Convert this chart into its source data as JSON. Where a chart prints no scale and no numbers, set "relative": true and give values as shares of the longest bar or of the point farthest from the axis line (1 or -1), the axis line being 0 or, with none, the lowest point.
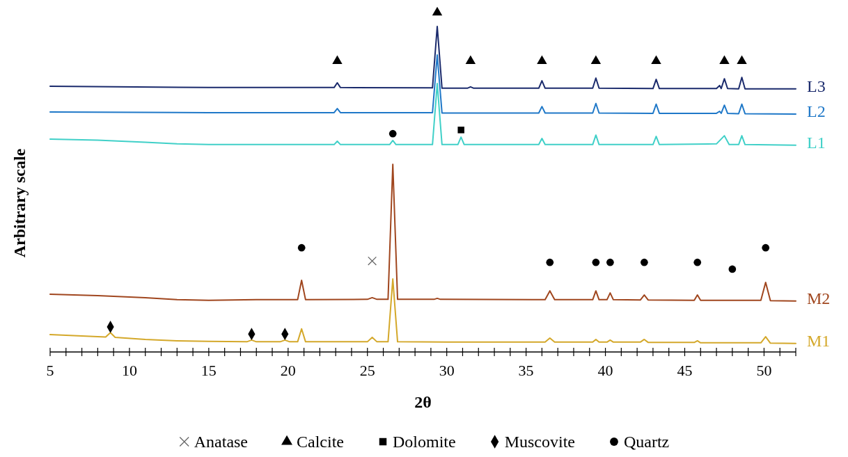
{
  "chart_data": {
    "type": "line",
    "relative": true,
    "xlabel": "2θ",
    "ylabel": "Arbitrary scale",
    "xlim": [
      5,
      52
    ],
    "xticks": [
      5,
      {
        "value": 6,
        "label": null
      },
      {
        "value": 7,
        "label": null
      },
      {
        "value": 8,
        "label": null
      },
      {
        "value": 9,
        "label": null
      },
      10,
      {
        "value": 11,
        "label": null
      },
      {
        "value": 12,
        "label": null
      },
      {
        "value": 13,
        "label": null
      },
      {
        "value": 14,
        "label": null
      },
      15,
      {
        "value": 16,
        "label": null
      },
      {
        "value": 17,
        "label": null
      },
      {
        "value": 18,
        "label": null
      },
      {
        "value": 19,
        "label": null
      },
      20,
      {
        "value": 21,
        "label": null
      },
      {
        "value": 22,
        "label": null
      },
      {
        "value": 23,
        "label": null
      },
      {
        "value": 24,
        "label": null
      },
      25,
      {
        "value": 26,
        "label": null
      },
      {
        "value": 27,
        "label": null
      },
      {
        "value": 28,
        "label": null
      },
      {
        "value": 29,
        "label": null
      },
      30,
      {
        "value": 31,
        "label": null
      },
      {
        "value": 32,
        "label": null
      },
      {
        "value": 33,
        "label": null
      },
      {
        "value": 34,
        "label": null
      },
      35,
      {
        "value": 36,
        "label": null
      },
      {
        "value": 37,
        "label": null
      },
      {
        "value": 38,
        "label": null
      },
      {
        "value": 39,
        "label": null
      },
      40,
      {
        "value": 41,
        "label": null
      },
      {
        "value": 42,
        "label": null
      },
      {
        "value": 43,
        "label": null
      },
      {
        "value": 44,
        "label": null
      },
      45,
      {
        "value": 46,
        "label": null
      },
      {
        "value": 47,
        "label": null
      },
      {
        "value": 48,
        "label": null
      },
      {
        "value": 49,
        "label": null
      },
      50,
      {
        "value": 51,
        "label": null
      },
      {
        "value": 52,
        "label": null
      }
    ],
    "tick_labels": "x",
    "legend": "bottom",
    "grid": false,
    "series": [
      {
        "name": "M1",
        "color": "#d4a82a",
        "x": [
          5,
          7,
          8.5,
          8.8,
          9.1,
          11,
          13,
          15,
          17.4,
          17.7,
          18,
          19.5,
          19.8,
          20.1,
          20.6,
          20.85,
          21.1,
          25,
          25.3,
          25.6,
          26.3,
          26.6,
          26.9,
          30,
          36.2,
          36.5,
          36.8,
          39.2,
          39.4,
          39.6,
          40.1,
          40.3,
          40.5,
          42.2,
          42.45,
          42.7,
          45.6,
          45.8,
          46,
          49.8,
          50.1,
          50.4,
          52
        ],
        "values": [
          0.051,
          0.047,
          0.044,
          0.057,
          0.043,
          0.037,
          0.033,
          0.031,
          0.03,
          0.035,
          0.03,
          0.03,
          0.035,
          0.03,
          0.03,
          0.068,
          0.03,
          0.03,
          0.043,
          0.03,
          0.03,
          0.215,
          0.03,
          0.029,
          0.029,
          0.041,
          0.029,
          0.029,
          0.037,
          0.029,
          0.029,
          0.035,
          0.029,
          0.029,
          0.037,
          0.028,
          0.028,
          0.033,
          0.027,
          0.027,
          0.045,
          0.026,
          0.025
        ]
      },
      {
        "name": "M2",
        "color": "#a0461e",
        "x": [
          5,
          8,
          11,
          13,
          15,
          18,
          20.6,
          20.85,
          21.1,
          25,
          25.3,
          25.6,
          26.3,
          26.6,
          26.9,
          29.2,
          29.4,
          29.6,
          36.2,
          36.5,
          36.8,
          39.2,
          39.4,
          39.6,
          40.1,
          40.3,
          40.5,
          42.2,
          42.45,
          42.7,
          45.6,
          45.8,
          46,
          49.8,
          50.1,
          50.4,
          52
        ],
        "values": [
          0.17,
          0.166,
          0.16,
          0.154,
          0.152,
          0.154,
          0.154,
          0.211,
          0.154,
          0.155,
          0.16,
          0.155,
          0.155,
          0.553,
          0.155,
          0.155,
          0.158,
          0.155,
          0.154,
          0.18,
          0.154,
          0.154,
          0.18,
          0.154,
          0.154,
          0.174,
          0.154,
          0.153,
          0.168,
          0.153,
          0.152,
          0.168,
          0.152,
          0.152,
          0.205,
          0.151,
          0.15
        ]
      },
      {
        "name": "L1",
        "color": "#40d0c8",
        "x": [
          5,
          8,
          11,
          13,
          15,
          18,
          22.9,
          23.1,
          23.3,
          26.4,
          26.6,
          26.8,
          29.1,
          29.4,
          29.7,
          30.7,
          30.9,
          31.1,
          35.8,
          36,
          36.2,
          39.2,
          39.4,
          39.6,
          43,
          43.2,
          43.4,
          47,
          47.5,
          47.8,
          48.4,
          48.6,
          48.8,
          52
        ],
        "values": [
          0.627,
          0.624,
          0.618,
          0.613,
          0.611,
          0.611,
          0.611,
          0.621,
          0.611,
          0.611,
          0.623,
          0.611,
          0.611,
          0.791,
          0.611,
          0.611,
          0.633,
          0.611,
          0.611,
          0.629,
          0.611,
          0.611,
          0.639,
          0.611,
          0.611,
          0.635,
          0.611,
          0.613,
          0.637,
          0.611,
          0.611,
          0.637,
          0.611,
          0.609
        ]
      },
      {
        "name": "L2",
        "color": "#1f78c8",
        "x": [
          5,
          15,
          22.9,
          23.1,
          23.3,
          29.1,
          29.4,
          29.7,
          35.8,
          36,
          36.2,
          39.2,
          39.4,
          39.6,
          43,
          43.2,
          43.4,
          47.0,
          47.2,
          47.3,
          47.5,
          47.7,
          48.4,
          48.6,
          48.8,
          52
        ],
        "values": [
          0.707,
          0.705,
          0.705,
          0.717,
          0.705,
          0.705,
          0.875,
          0.704,
          0.704,
          0.723,
          0.704,
          0.704,
          0.732,
          0.704,
          0.703,
          0.73,
          0.703,
          0.703,
          0.709,
          0.703,
          0.727,
          0.703,
          0.702,
          0.73,
          0.702,
          0.701
        ]
      },
      {
        "name": "L3",
        "color": "#1a2a6c",
        "x": [
          5,
          15,
          22.9,
          23.1,
          23.3,
          29.1,
          29.4,
          29.7,
          31.3,
          31.5,
          31.7,
          35.8,
          36,
          36.2,
          39.2,
          39.4,
          39.6,
          43,
          43.2,
          43.4,
          47.0,
          47.2,
          47.3,
          47.5,
          47.7,
          48.4,
          48.6,
          48.8,
          52
        ],
        "values": [
          0.783,
          0.779,
          0.779,
          0.793,
          0.779,
          0.778,
          0.959,
          0.777,
          0.777,
          0.781,
          0.777,
          0.777,
          0.799,
          0.777,
          0.777,
          0.807,
          0.777,
          0.776,
          0.803,
          0.776,
          0.776,
          0.785,
          0.776,
          0.805,
          0.776,
          0.775,
          0.809,
          0.775,
          0.775
        ]
      },
      {
        "name": "Anatase",
        "type": "scatter",
        "marker": "cross",
        "color": "#666666",
        "x": [
          25.3
        ],
        "values": [
          0.268
        ]
      },
      {
        "name": "Calcite",
        "type": "scatter",
        "marker": "triangle",
        "color": "#000000",
        "x": [
          23.1,
          29.4,
          31.5,
          36,
          39.4,
          43.2,
          47.5,
          48.6
        ],
        "values": [
          0.857,
          1,
          0.857,
          0.857,
          0.857,
          0.857,
          0.857,
          0.857
        ]
      },
      {
        "name": "Dolomite",
        "type": "scatter",
        "marker": "square",
        "color": "#000000",
        "x": [
          30.9
        ],
        "values": [
          0.654
        ]
      },
      {
        "name": "Muscovite",
        "type": "scatter",
        "marker": "diamond",
        "color": "#000000",
        "x": [
          8.8,
          17.7,
          19.8
        ],
        "values": [
          0.074,
          0.053,
          0.053
        ]
      },
      {
        "name": "Quartz",
        "type": "scatter",
        "marker": "circle",
        "color": "#000000",
        "x": [
          26.6,
          20.85,
          36.5,
          39.4,
          40.3,
          42.45,
          45.8,
          48,
          50.1
        ],
        "values": [
          0.643,
          0.307,
          0.264,
          0.264,
          0.264,
          0.264,
          0.264,
          0.244,
          0.307
        ]
      }
    ]
  }
}
